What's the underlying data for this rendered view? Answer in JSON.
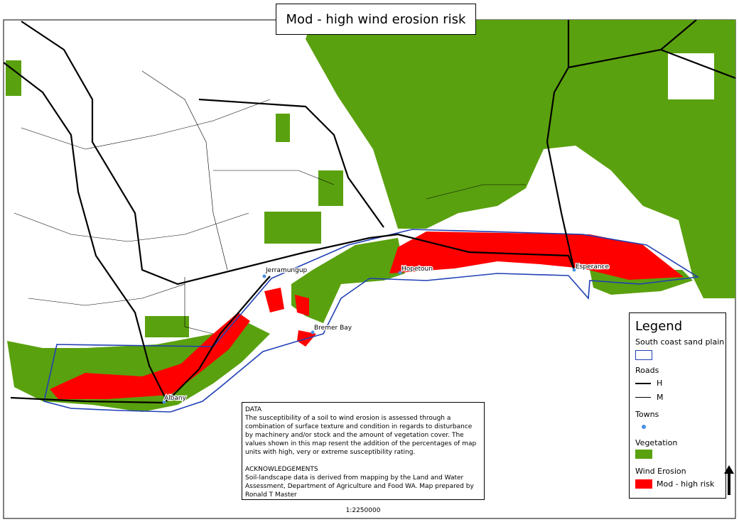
{
  "title": "Mod - high wind erosion risk",
  "towns": [
    {
      "label": "Jerramungup"
    },
    {
      "label": "Hopetoun"
    },
    {
      "label": "Esperance"
    },
    {
      "label": "Bremer Bay"
    },
    {
      "label": "Albany"
    }
  ],
  "legend": {
    "title": "Legend",
    "sand_plain": "South coast sand plain",
    "roads": "Roads",
    "road_h": "H",
    "road_m": "M",
    "towns": "Towns",
    "vegetation": "Vegetation",
    "wind_erosion": "Wind Erosion",
    "erosion_class": "Mod - high risk"
  },
  "info": {
    "data_heading": "DATA",
    "data_text": "The susceptibility of a soil to wind erosion is assessed through a combination of surface texture and condition in regards to disturbance by machinery and/or stock and the amount of vegetation cover. The values shown in this map resent the addition of the percentages of map units with high, very or extreme susceptibility rating.",
    "ack_heading": "ACKNOWLEDGEMENTS",
    "ack_text": "Soil-landscape data is derived from mapping by the Land and Water Assessment, Department of Agriculture and Food WA. Map prepared by Ronald T Master",
    "scale": "1:2250000"
  }
}
